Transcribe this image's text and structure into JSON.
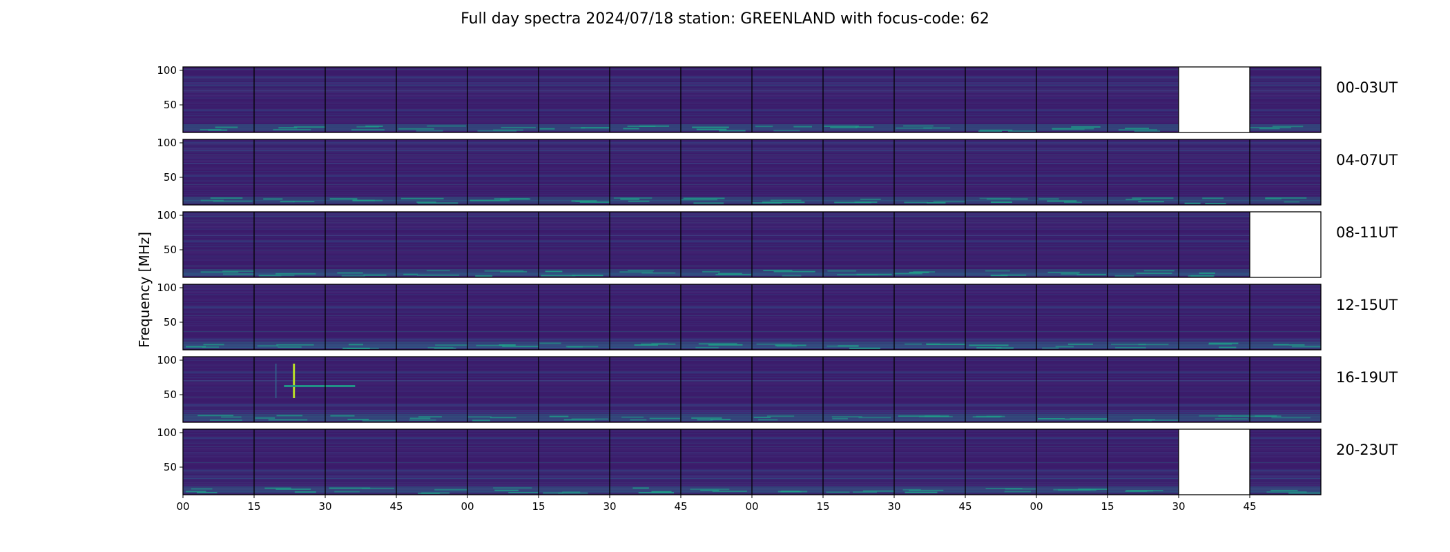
{
  "chart_data": {
    "type": "heatmap",
    "title": "Full day spectra 2024/07/18 station: GREENLAND with focus-code: 62",
    "ylabel": "Frequency [MHz]",
    "xlabel": "",
    "ylim": [
      10,
      105
    ],
    "y_ticks": [
      50,
      100
    ],
    "x_tick_labels": [
      "00",
      "15",
      "30",
      "45",
      "00",
      "15",
      "30",
      "45",
      "00",
      "15",
      "30",
      "45",
      "00",
      "15",
      "30",
      "45"
    ],
    "colormap": "viridis",
    "colors": {
      "background": "#3b1c6b",
      "band_low": "#1f9e89",
      "band_bright": "#b8de29",
      "frame": "#000000"
    },
    "panels_per_row": 16,
    "rows": [
      {
        "label": "00-03UT",
        "missing_panels": [
          14
        ]
      },
      {
        "label": "04-07UT",
        "missing_panels": []
      },
      {
        "label": "08-11UT",
        "missing_panels": [
          15
        ]
      },
      {
        "label": "12-15UT",
        "missing_panels": []
      },
      {
        "label": "16-19UT",
        "missing_panels": []
      },
      {
        "label": "20-23UT",
        "missing_panels": [
          14
        ]
      }
    ],
    "events": [
      {
        "row": "16-19UT",
        "panel": 1,
        "frequency_range": [
          45,
          95
        ],
        "description": "bright vertical burst"
      }
    ]
  }
}
